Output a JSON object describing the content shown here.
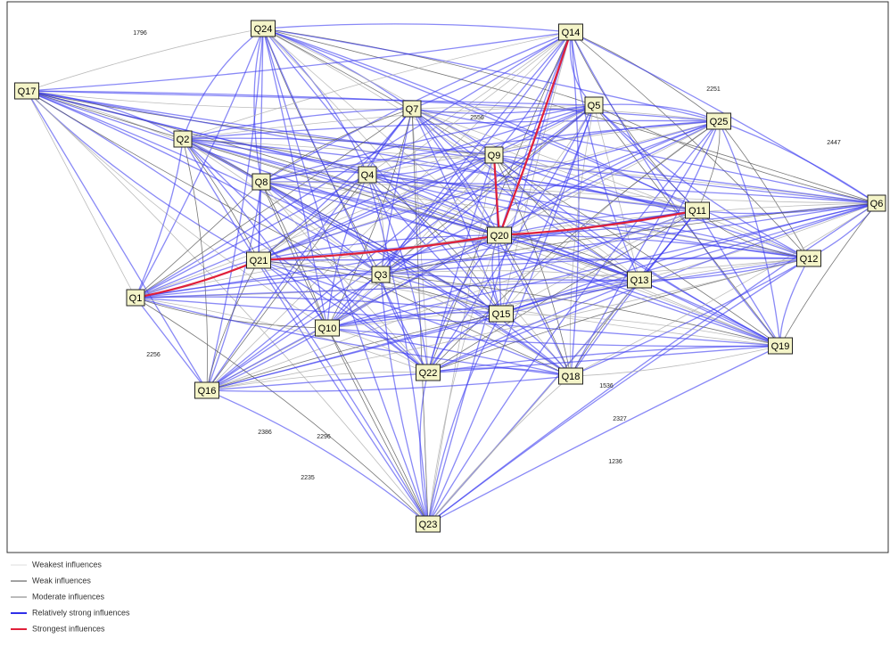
{
  "nodes": [
    {
      "label": "Q24"
    },
    {
      "label": "Q14"
    },
    {
      "label": "Q17"
    },
    {
      "label": "Q2"
    },
    {
      "label": "Q7"
    },
    {
      "label": "Q5"
    },
    {
      "label": "Q25"
    },
    {
      "label": "Q9"
    },
    {
      "label": "Q4"
    },
    {
      "label": "Q8"
    },
    {
      "label": "Q6"
    },
    {
      "label": "Q11"
    },
    {
      "label": "Q20"
    },
    {
      "label": "Q21"
    },
    {
      "label": "Q1"
    },
    {
      "label": "Q3"
    },
    {
      "label": "Q12"
    },
    {
      "label": "Q13"
    },
    {
      "label": "Q15"
    },
    {
      "label": "Q10"
    },
    {
      "label": "Q19"
    },
    {
      "label": "Q22"
    },
    {
      "label": "Q18"
    },
    {
      "label": "Q16"
    },
    {
      "label": "Q23"
    }
  ],
  "edge_labels": [
    "1796",
    "2556",
    "2447",
    "2327",
    "2256",
    "1236",
    "2235",
    "1536",
    "2386",
    "2251",
    "2296"
  ],
  "legend": [
    {
      "label": "Weakest influences"
    },
    {
      "label": "Weak influences"
    },
    {
      "label": "Moderate influences"
    },
    {
      "label": "Relatively strong influences"
    },
    {
      "label": "Strongest influences"
    }
  ]
}
